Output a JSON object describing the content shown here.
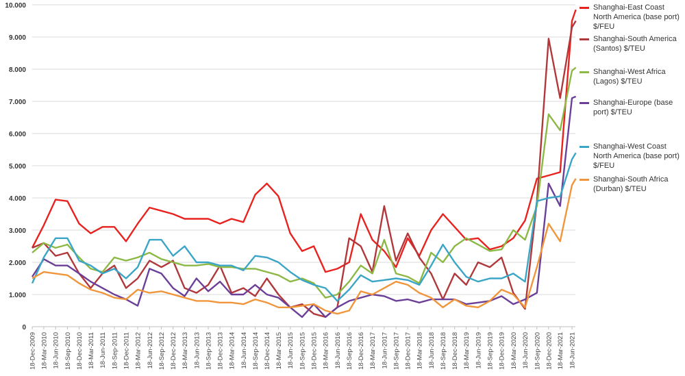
{
  "chart_data": {
    "type": "line",
    "title": "",
    "xlabel": "",
    "ylabel": "",
    "ylim": [
      0,
      10000
    ],
    "y_ticks": [
      "0",
      "1.000",
      "2.000",
      "3.000",
      "4.000",
      "5.000",
      "6.000",
      "7.000",
      "8.000",
      "9.000",
      "10.000"
    ],
    "grid": true,
    "legend_position": "right",
    "x_tick_labels": [
      "18-Dec-2009",
      "18-Mar-2010",
      "18-Jun-2010",
      "18-Sep-2010",
      "18-Dec-2010",
      "18-Mar-2011",
      "18-Jun-2011",
      "18-Sep-2011",
      "18-Dec-2011",
      "18-Mar-2012",
      "18-Jun-2012",
      "18-Sep-2012",
      "18-Dec-2012",
      "18-Mar-2013",
      "18-Jun-2013",
      "18-Sep-2013",
      "18-Dec-2013",
      "18-Mar-2014",
      "18-Jun-2014",
      "18-Sep-2014",
      "18-Dec-2014",
      "18-Mar-2015",
      "18-Jun-2015",
      "18-Sep-2015",
      "18-Dec-2015",
      "18-Mar-2016",
      "18-Jun-2016",
      "18-Sep-2016",
      "18-Dec-2016",
      "18-Mar-2017",
      "18-Jun-2017",
      "18-Sep-2017",
      "18-Dec-2017",
      "18-Mar-2018",
      "18-Jun-2018",
      "18-Sep-2018",
      "18-Dec-2018",
      "18-Mar-2019",
      "18-Jun-2019",
      "18-Sep-2019",
      "18-Dec-2019",
      "18-Mar-2020",
      "18-Jun-2020",
      "18-Sep-2020",
      "18-Dec-2020",
      "18-Mar-2021",
      "18-Jun-2021"
    ],
    "x": [
      "2009-12-18",
      "2010-03-18",
      "2010-06-18",
      "2010-09-18",
      "2010-12-18",
      "2011-03-18",
      "2011-06-18",
      "2011-09-18",
      "2011-12-18",
      "2012-03-18",
      "2012-06-18",
      "2012-09-18",
      "2012-12-18",
      "2013-03-18",
      "2013-06-18",
      "2013-09-18",
      "2013-12-18",
      "2014-03-18",
      "2014-06-18",
      "2014-09-18",
      "2014-12-18",
      "2015-03-18",
      "2015-06-18",
      "2015-09-18",
      "2015-12-18",
      "2016-03-18",
      "2016-06-18",
      "2016-09-18",
      "2016-12-18",
      "2017-03-18",
      "2017-06-18",
      "2017-09-18",
      "2017-12-18",
      "2018-03-18",
      "2018-06-18",
      "2018-09-18",
      "2018-12-18",
      "2019-03-18",
      "2019-06-18",
      "2019-09-18",
      "2019-12-18",
      "2020-03-18",
      "2020-06-18",
      "2020-09-18",
      "2020-12-18",
      "2021-03-18",
      "2021-06-18",
      "2021-07-18"
    ],
    "series": [
      {
        "name": "Shanghai-East Coast North America (base port) $/FEU",
        "color": "#e8221f",
        "values": [
          2450,
          3150,
          3950,
          3900,
          3200,
          2900,
          3100,
          3100,
          2650,
          3200,
          3700,
          3600,
          3500,
          3350,
          3350,
          3350,
          3200,
          3350,
          3250,
          4100,
          4450,
          4050,
          2900,
          2350,
          2500,
          1700,
          1800,
          2000,
          3500,
          2700,
          2350,
          1850,
          2750,
          2200,
          3000,
          3500,
          3100,
          2700,
          2750,
          2400,
          2500,
          2750,
          3300,
          4600,
          4700,
          4800,
          9500,
          9850
        ]
      },
      {
        "name": "Shanghai-South America (Santos) $/TEU",
        "color": "#b1383a",
        "values": [
          2450,
          2600,
          2200,
          2300,
          1650,
          1200,
          1650,
          1900,
          1200,
          1500,
          2050,
          1850,
          2050,
          1200,
          1050,
          1300,
          1900,
          1050,
          1200,
          950,
          1500,
          1000,
          600,
          700,
          400,
          300,
          600,
          2750,
          2500,
          1700,
          3750,
          2050,
          2900,
          2150,
          1650,
          850,
          1650,
          1300,
          2000,
          1850,
          2150,
          1050,
          550,
          3900,
          8950,
          7100,
          9300,
          9500
        ]
      },
      {
        "name": "Shanghai-West Africa (Lagos) $/TEU",
        "color": "#8cb845",
        "values": [
          2300,
          2600,
          2450,
          2550,
          2150,
          1800,
          1700,
          2150,
          2050,
          2150,
          2300,
          2100,
          2000,
          1900,
          1900,
          1950,
          1850,
          1850,
          1800,
          1800,
          1700,
          1600,
          1400,
          1500,
          1350,
          900,
          1000,
          1400,
          1900,
          1650,
          2700,
          1650,
          1550,
          1350,
          2300,
          2000,
          2500,
          2750,
          2550,
          2350,
          2400,
          3000,
          2700,
          3750,
          6600,
          6100,
          7950,
          8050
        ]
      },
      {
        "name": "Shanghai-Europe (base port) $/TEU",
        "color": "#6b3f98",
        "values": [
          1550,
          2100,
          1900,
          1900,
          1650,
          1400,
          1200,
          1000,
          850,
          650,
          1800,
          1650,
          1200,
          950,
          1500,
          1100,
          1400,
          1000,
          1000,
          1300,
          1000,
          900,
          600,
          300,
          700,
          300,
          600,
          800,
          900,
          1000,
          950,
          800,
          850,
          750,
          850,
          850,
          850,
          700,
          750,
          800,
          950,
          700,
          850,
          1050,
          4450,
          3750,
          7100,
          7150
        ]
      },
      {
        "name": "Shanghai-West Coast North America (base port) $/FEU",
        "color": "#3aa5c6",
        "values": [
          1350,
          2150,
          2750,
          2750,
          2050,
          1900,
          1650,
          1800,
          1500,
          1850,
          2700,
          2700,
          2200,
          2500,
          2000,
          2000,
          1900,
          1900,
          1750,
          2200,
          2150,
          2000,
          1700,
          1450,
          1300,
          1200,
          800,
          1150,
          1600,
          1400,
          1450,
          1500,
          1450,
          1300,
          1900,
          2550,
          2000,
          1550,
          1400,
          1500,
          1500,
          1650,
          1400,
          3900,
          4000,
          4050,
          5200,
          5400
        ]
      },
      {
        "name": "Shanghai-South Africa (Durban) $/TEU",
        "color": "#f0953a",
        "values": [
          1500,
          1700,
          1650,
          1600,
          1350,
          1150,
          1050,
          900,
          850,
          1150,
          1050,
          1100,
          1000,
          900,
          800,
          800,
          750,
          750,
          700,
          850,
          750,
          600,
          600,
          650,
          700,
          500,
          400,
          500,
          1100,
          1000,
          1200,
          1400,
          1300,
          1050,
          900,
          600,
          850,
          650,
          600,
          800,
          1150,
          1000,
          600,
          1850,
          3200,
          2650,
          4400,
          4600
        ]
      }
    ]
  }
}
